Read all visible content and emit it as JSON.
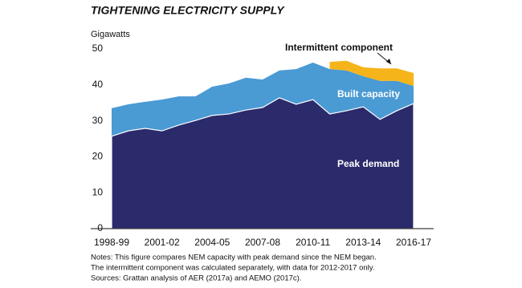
{
  "chart_data": {
    "type": "area",
    "title": "TIGHTENING ELECTRICITY SUPPLY",
    "y_label": "Gigawatts",
    "categories": [
      "1998-99",
      null,
      null,
      "2001-02",
      null,
      null,
      "2004-05",
      null,
      null,
      "2007-08",
      null,
      null,
      "2010-11",
      null,
      null,
      "2013-14",
      null,
      null,
      "2016-17"
    ],
    "series": [
      {
        "name": "Peak demand",
        "color": "#2b2a6b",
        "values": [
          25.7,
          27.2,
          27.9,
          27.2,
          28.8,
          30.1,
          31.5,
          31.9,
          33,
          33.7,
          36.4,
          34.6,
          35.9,
          31.9,
          32.8,
          33.9,
          30.4,
          32.8,
          34.8
        ]
      },
      {
        "name": "Built capacity",
        "color": "#4a9ad4",
        "values": [
          33.5,
          34.6,
          35.3,
          35.9,
          36.8,
          36.8,
          39.5,
          40.4,
          42,
          41.5,
          44,
          44.4,
          46.2,
          44.4,
          44,
          42.4,
          41.1,
          41.1,
          39.7
        ]
      },
      {
        "name": "Intermittent component",
        "color": "#f5b41a",
        "values": [
          null,
          null,
          null,
          null,
          null,
          null,
          null,
          null,
          null,
          null,
          null,
          null,
          null,
          2,
          2.7,
          2.5,
          3.5,
          3.5,
          3.6
        ]
      }
    ],
    "ylim": [
      0,
      50
    ],
    "yticks": [
      0,
      10,
      20,
      30,
      40,
      50
    ],
    "notes": [
      "Notes: This figure compares NEM capacity with peak demand since the NEM began.",
      "The intermittent component was calculated separately, with data for 2012-2017 only.",
      "Sources: Grattan analysis of AER (2017a) and AEMO (2017c)."
    ]
  }
}
